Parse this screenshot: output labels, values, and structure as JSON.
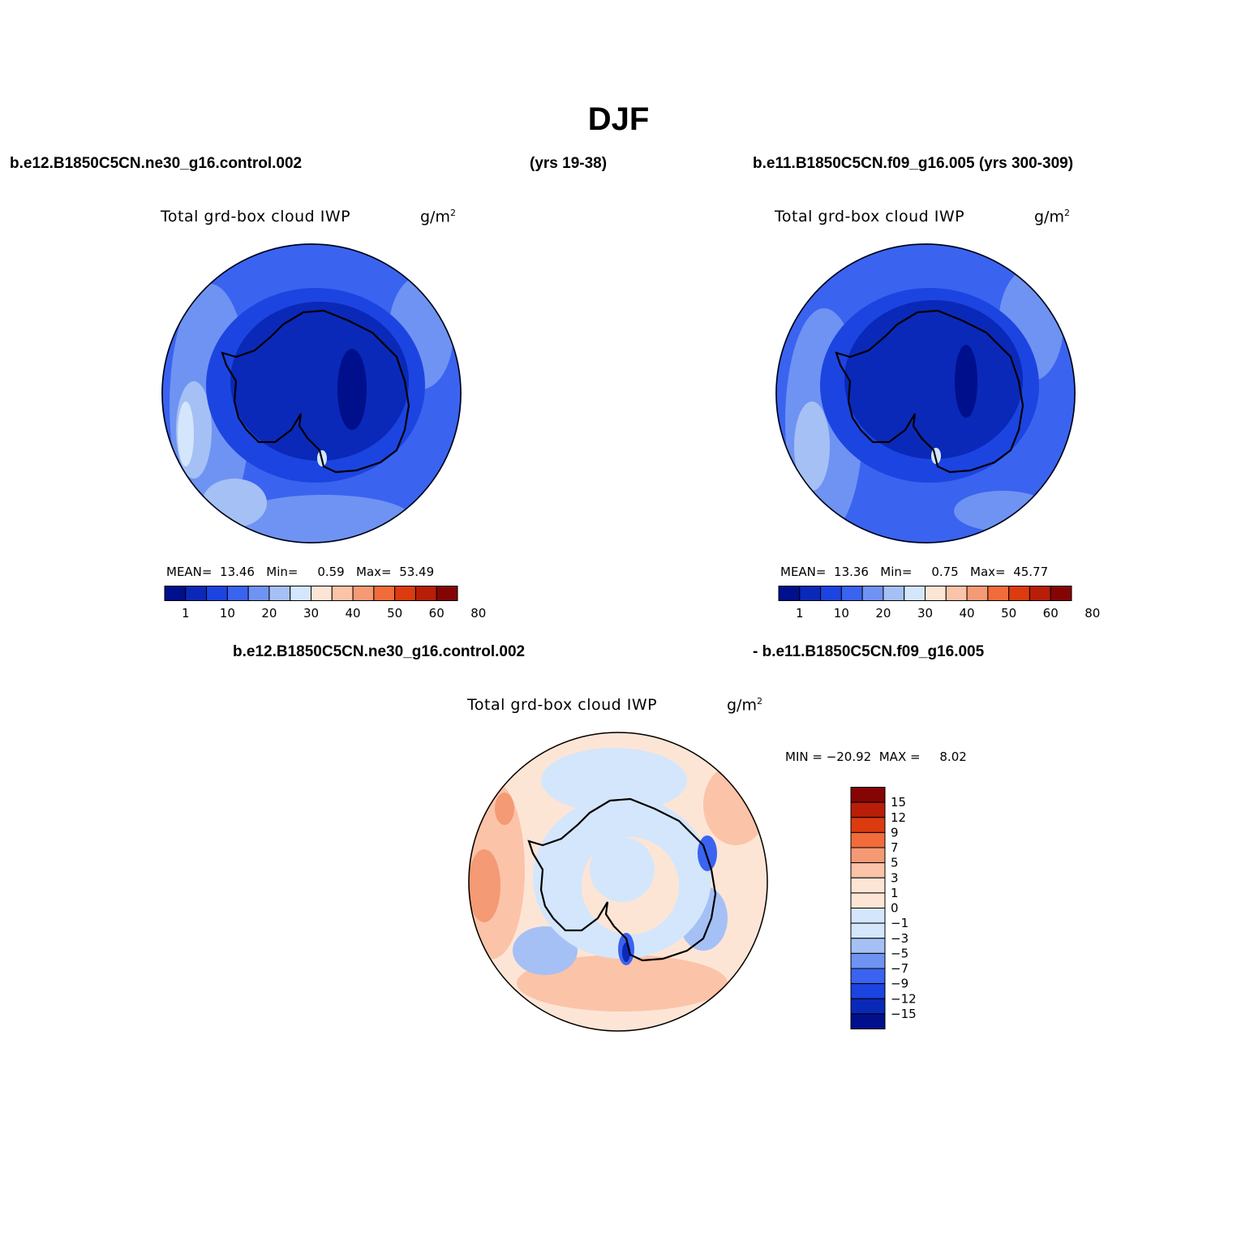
{
  "figure": {
    "title": "DJF",
    "case1_name": "b.e12.B1850C5CN.ne30_g16.control.002",
    "case1_years": "(yrs 19-38)",
    "case2_label": "b.e11.B1850C5CN.f09_g16.005 (yrs 300-309)",
    "diff_case1": "b.e12.B1850C5CN.ne30_g16.control.002",
    "diff_case2": "- b.e11.B1850C5CN.f09_g16.005"
  },
  "colors": {
    "abs_scale": [
      "#000f8c",
      "#0a29b8",
      "#1c44e0",
      "#3a63f0",
      "#6f93f2",
      "#a5c0f5",
      "#d4e6fb",
      "#fde5d6",
      "#fbc3a8",
      "#f49a75",
      "#f26b3b",
      "#db3b0f",
      "#b81e08",
      "#850505"
    ],
    "diff_scale": [
      "#000f8c",
      "#0a29b8",
      "#1c44e0",
      "#3a63f0",
      "#6f93f2",
      "#a5c0f5",
      "#d4e6fb",
      "#fde5d6",
      "#fbc3a8",
      "#f49a75",
      "#f26b3b",
      "#db3b0f",
      "#b81e08",
      "#850505"
    ]
  },
  "chart_data": [
    {
      "type": "heatmap",
      "projection": "south-polar-stereographic",
      "title": "Total grd-box cloud IWP",
      "units": "g/m",
      "units_exp": "2",
      "case": "b.e12.B1850C5CN.ne30_g16.control.002 (yrs 19-38)",
      "stats": {
        "mean_label": "MEAN=",
        "mean": "13.46",
        "min_label": "Min=",
        "min": "0.59",
        "max_label": "Max=",
        "max": "53.49"
      },
      "colorbar_labels": [
        "1",
        "10",
        "20",
        "30",
        "40",
        "50",
        "60",
        "80"
      ]
    },
    {
      "type": "heatmap",
      "projection": "south-polar-stereographic",
      "title": "Total grd-box cloud IWP",
      "units": "g/m",
      "units_exp": "2",
      "case": "b.e11.B1850C5CN.f09_g16.005 (yrs 300-309)",
      "stats": {
        "mean_label": "MEAN=",
        "mean": "13.36",
        "min_label": "Min=",
        "min": "0.75",
        "max_label": "Max=",
        "max": "45.77"
      },
      "colorbar_labels": [
        "1",
        "10",
        "20",
        "30",
        "40",
        "50",
        "60",
        "80"
      ]
    },
    {
      "type": "heatmap",
      "projection": "south-polar-stereographic",
      "title": "Total grd-box cloud IWP",
      "units": "g/m",
      "units_exp": "2",
      "case": "difference",
      "minmax_text": "MIN = −20.92  MAX =     8.02",
      "colorbar_labels": [
        "15",
        "12",
        "9",
        "7",
        "5",
        "3",
        "1",
        "0",
        "−1",
        "−3",
        "−5",
        "−7",
        "−9",
        "−12",
        "−15"
      ]
    }
  ]
}
